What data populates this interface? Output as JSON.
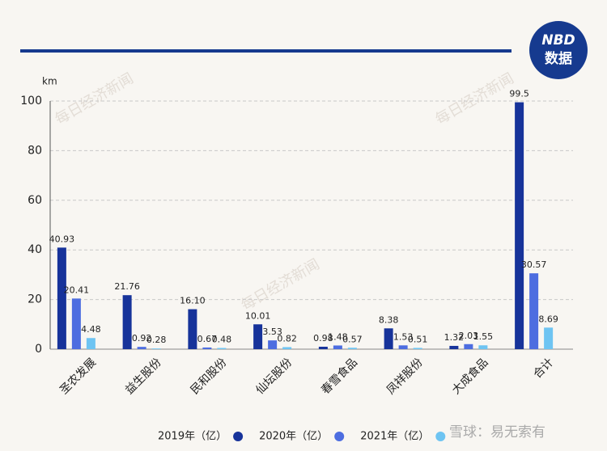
{
  "logo": {
    "line1": "NBD",
    "line2": "数据"
  },
  "watermark": "每日经济新闻",
  "source_mark": "雪球：易无索有",
  "chart_data": {
    "type": "bar",
    "y_axis_label": "km",
    "categories": [
      "圣农发展",
      "益生股份",
      "民和股份",
      "仙坛股份",
      "春雪食品",
      "凤祥股份",
      "大成食品",
      "合计"
    ],
    "series": [
      {
        "name": "2019年（亿）",
        "color": "#17339a",
        "values": [
          40.93,
          21.76,
          16.1,
          10.01,
          0.98,
          8.38,
          1.32,
          99.5
        ],
        "value_labels": [
          "40.93",
          "21.76",
          "16.10",
          "10.01",
          "0.98",
          "8.38",
          "1.32",
          "99.5"
        ]
      },
      {
        "name": "2020年（亿）",
        "color": "#4d6de0",
        "values": [
          20.41,
          0.92,
          0.67,
          3.53,
          1.48,
          1.53,
          2.03,
          30.57
        ],
        "value_labels": [
          "20.41",
          "0.92",
          "0.67",
          "3.53",
          "1.48",
          "1.53",
          "2.03",
          "30.57"
        ]
      },
      {
        "name": "2021年（亿）",
        "color": "#6ec4f2",
        "values": [
          4.48,
          0.28,
          0.48,
          0.82,
          0.57,
          0.51,
          1.55,
          8.69
        ],
        "value_labels": [
          "4.48",
          "0.28",
          "0.48",
          "0.82",
          "0.57",
          "0.51",
          "1.55",
          "8.69"
        ]
      }
    ],
    "ylim": [
      0,
      100
    ],
    "yticks": [
      0,
      20,
      40,
      60,
      80,
      100
    ],
    "grid": true
  }
}
